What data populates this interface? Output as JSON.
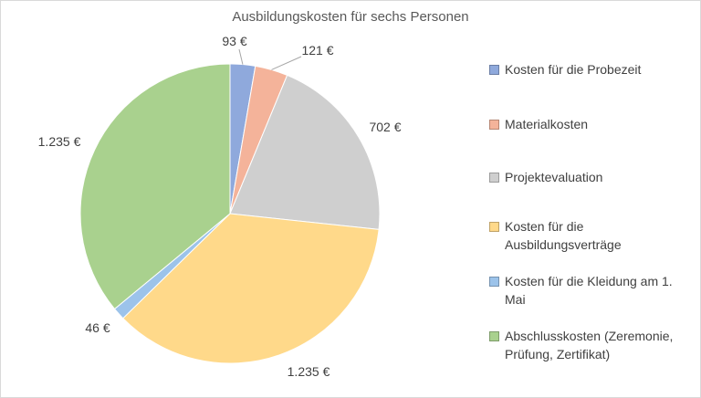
{
  "chart_data": {
    "type": "pie",
    "title": "Ausbildungskosten für sechs Personen",
    "slices": [
      {
        "label": "Kosten für die Probezeit",
        "value": 93,
        "value_label": "93 €",
        "color": "#8FA9DC"
      },
      {
        "label": "Materialkosten",
        "value": 121,
        "value_label": "121 €",
        "color": "#F4B39A"
      },
      {
        "label": "Projektevaluation",
        "value": 702,
        "value_label": "702 €",
        "color": "#CFCFCF"
      },
      {
        "label": "Kosten für die Ausbildungsverträge",
        "value": 1235,
        "value_label": "1.235 €",
        "color": "#FFD98A"
      },
      {
        "label": "Kosten für die Kleidung am 1. Mai",
        "value": 46,
        "value_label": "46 €",
        "color": "#9CC3EA"
      },
      {
        "label": "Abschlusskosten (Zeremonie, Prüfung, Zertifikat)",
        "value": 1235,
        "value_label": "1.235 €",
        "color": "#A9D18E"
      }
    ],
    "start_angle": "12 o'clock",
    "direction": "clockwise",
    "legend": "right"
  },
  "legend_lines": [
    [
      "Kosten für die Probezeit"
    ],
    [
      "Materialkosten"
    ],
    [
      "Projektevaluation"
    ],
    [
      "Kosten für die",
      "Ausbildungsverträge"
    ],
    [
      "Kosten für die Kleidung am 1.",
      "Mai"
    ],
    [
      "Abschlusskosten (Zeremonie,",
      "Prüfung, Zertifikat)"
    ]
  ]
}
